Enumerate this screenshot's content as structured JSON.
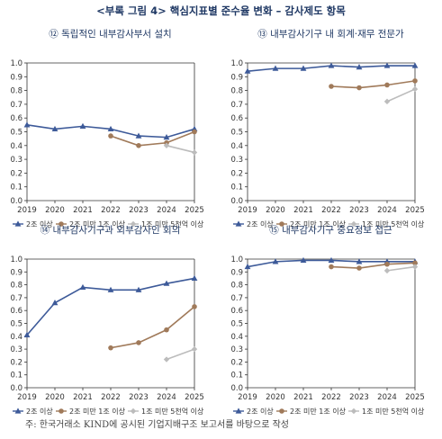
{
  "page_title": "<부록 그림 4> 핵심지표별 준수율 변화 – 감사제도 항목",
  "footnote": "주: 한국거래소 KIND에 공시된 기업지배구조 보고서를 바탕으로 작성",
  "colors": {
    "series1": "#3d5a99",
    "series2": "#a07a5a",
    "series3": "#bcbcbc",
    "axis": "#333333"
  },
  "legend_labels": [
    "2조 이상",
    "2조 미만 1조 이상",
    "1조 미만 5천억 이상"
  ],
  "chart_data": [
    {
      "type": "line",
      "title": "⑫ 독립적인 내부감사부서 설치",
      "x": [
        "2019",
        "2020",
        "2021",
        "2022",
        "2023",
        "2024",
        "2025"
      ],
      "ylim": [
        0,
        1.0
      ],
      "yticks": [
        "0.0",
        "0.1",
        "0.2",
        "0.3",
        "0.4",
        "0.5",
        "0.6",
        "0.7",
        "0.8",
        "0.9",
        "1.0"
      ],
      "grid": false,
      "legend_position": "bottom",
      "series": [
        {
          "name": "2조 이상",
          "marker": "triangle",
          "values": [
            0.55,
            0.52,
            0.54,
            0.52,
            0.47,
            0.46,
            0.52
          ]
        },
        {
          "name": "2조 미만 1조 이상",
          "marker": "circle",
          "values": [
            null,
            null,
            null,
            0.47,
            0.4,
            0.42,
            0.5
          ]
        },
        {
          "name": "1조 미만 5천억 이상",
          "marker": "diamond",
          "values": [
            null,
            null,
            null,
            null,
            null,
            0.4,
            0.35
          ]
        }
      ]
    },
    {
      "type": "line",
      "title": "⑬ 내부감사기구 내 회계·재무 전문가",
      "x": [
        "2019",
        "2020",
        "2021",
        "2022",
        "2023",
        "2024",
        "2025"
      ],
      "ylim": [
        0,
        1.0
      ],
      "yticks": [
        "0.0",
        "0.1",
        "0.2",
        "0.3",
        "0.4",
        "0.5",
        "0.6",
        "0.7",
        "0.8",
        "0.9",
        "1.0"
      ],
      "grid": false,
      "legend_position": "bottom",
      "series": [
        {
          "name": "2조 이상",
          "marker": "triangle",
          "values": [
            0.94,
            0.96,
            0.96,
            0.98,
            0.97,
            0.98,
            0.98
          ]
        },
        {
          "name": "2조 미만 1조 이상",
          "marker": "circle",
          "values": [
            null,
            null,
            null,
            0.83,
            0.82,
            0.84,
            0.87
          ]
        },
        {
          "name": "1조 미만 5천억 이상",
          "marker": "diamond",
          "values": [
            null,
            null,
            null,
            null,
            null,
            0.72,
            0.81
          ]
        }
      ]
    },
    {
      "type": "line",
      "title": "⑭ 내부감사기구과 외부감사인 회의",
      "x": [
        "2019",
        "2020",
        "2021",
        "2022",
        "2023",
        "2024",
        "2025"
      ],
      "ylim": [
        0,
        1.0
      ],
      "yticks": [
        "0.0",
        "0.1",
        "0.2",
        "0.3",
        "0.4",
        "0.5",
        "0.6",
        "0.7",
        "0.8",
        "0.9",
        "1.0"
      ],
      "grid": false,
      "legend_position": "bottom",
      "series": [
        {
          "name": "2조 이상",
          "marker": "triangle",
          "values": [
            0.41,
            0.66,
            0.78,
            0.76,
            0.76,
            0.81,
            0.85
          ]
        },
        {
          "name": "2조 미만 1조 이상",
          "marker": "circle",
          "values": [
            null,
            null,
            null,
            0.31,
            0.35,
            0.45,
            0.63
          ]
        },
        {
          "name": "1조 미만 5천억 이상",
          "marker": "diamond",
          "values": [
            null,
            null,
            null,
            null,
            null,
            0.22,
            0.3
          ]
        }
      ]
    },
    {
      "type": "line",
      "title": "⑮ 내부감사기구 중요정보 접근",
      "x": [
        "2019",
        "2020",
        "2021",
        "2022",
        "2023",
        "2024",
        "2025"
      ],
      "ylim": [
        0,
        1.0
      ],
      "yticks": [
        "0.0",
        "0.1",
        "0.2",
        "0.3",
        "0.4",
        "0.5",
        "0.6",
        "0.7",
        "0.8",
        "0.9",
        "1.0"
      ],
      "grid": false,
      "legend_position": "bottom",
      "series": [
        {
          "name": "2조 이상",
          "marker": "triangle",
          "values": [
            0.94,
            0.98,
            0.99,
            0.99,
            0.98,
            0.98,
            0.98
          ]
        },
        {
          "name": "2조 미만 1조 이상",
          "marker": "circle",
          "values": [
            null,
            null,
            null,
            0.94,
            0.93,
            0.96,
            0.97
          ]
        },
        {
          "name": "1조 미만 5천억 이상",
          "marker": "diamond",
          "values": [
            null,
            null,
            null,
            null,
            null,
            0.91,
            0.94
          ]
        }
      ]
    }
  ]
}
